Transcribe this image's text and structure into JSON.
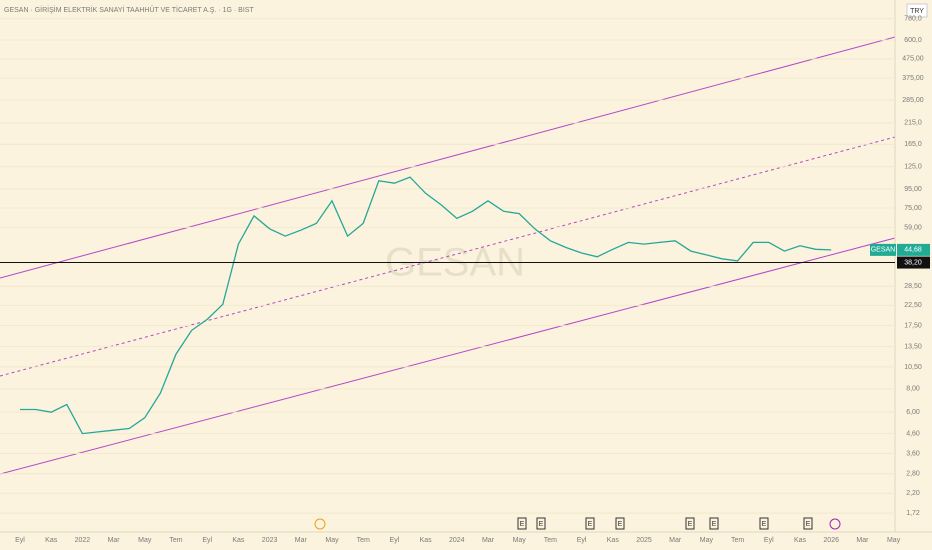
{
  "chart_data": {
    "type": "line",
    "title": "GESAN · GİRİŞİM ELEKTRİK SANAYİ TAAHHÜT VE TİCARET A.Ş. · 1G · BIST",
    "currency": "TRY",
    "watermark": "GESAN",
    "symbol": "GESAN",
    "log_scale": true,
    "grid": true,
    "color": "#26a69a",
    "categories": [
      "Eyl",
      null,
      "Kas",
      null,
      "2022",
      null,
      "Mar",
      null,
      "May",
      null,
      "Tem",
      null,
      "Eyl",
      null,
      "Kas",
      null,
      "2023",
      null,
      "Mar",
      null,
      "May",
      null,
      "Tem",
      null,
      "Eyl",
      null,
      "Kas",
      null,
      "2024",
      null,
      "Mar",
      null,
      "May",
      null,
      "Tem",
      null,
      "Eyl",
      null,
      "Kas",
      null,
      "2025",
      null,
      "Mar",
      null,
      "May",
      null,
      "Tem",
      null,
      "Eyl",
      null,
      "Kas",
      null,
      "2026",
      null,
      "Mar",
      null,
      "May"
    ],
    "values": [
      6.2,
      6.2,
      6.0,
      6.6,
      4.6,
      4.7,
      4.8,
      4.9,
      5.6,
      7.6,
      12.3,
      16.5,
      18.9,
      22.8,
      48,
      68,
      58,
      53,
      57,
      62,
      82,
      53,
      62,
      105,
      102,
      110,
      90,
      78,
      66,
      72,
      82,
      72,
      70,
      58,
      50,
      46,
      43,
      41,
      45,
      49,
      48,
      49,
      50,
      44,
      42,
      40,
      39,
      49,
      49,
      44,
      47,
      45,
      44.68,
      null,
      null,
      null,
      null
    ],
    "ylim": [
      1.58,
      891
    ],
    "yticks": [
      {
        "value": 1.72,
        "label": "1,72"
      },
      {
        "value": 2.2,
        "label": "2,20"
      },
      {
        "value": 2.8,
        "label": "2,80"
      },
      {
        "value": 3.6,
        "label": "3,60"
      },
      {
        "value": 4.6,
        "label": "4,60"
      },
      {
        "value": 6,
        "label": "6,00"
      },
      {
        "value": 8,
        "label": "8,00"
      },
      {
        "value": 10.5,
        "label": "10,50"
      },
      {
        "value": 13.5,
        "label": "13,50"
      },
      {
        "value": 17.5,
        "label": "17,50"
      },
      {
        "value": 22.5,
        "label": "22,50"
      },
      {
        "value": 28.5,
        "label": "28,50"
      },
      {
        "value": 59,
        "label": "59,00"
      },
      {
        "value": 75,
        "label": "75,00"
      },
      {
        "value": 95,
        "label": "95,00"
      },
      {
        "value": 125,
        "label": "125,0"
      },
      {
        "value": 165,
        "label": "165,0"
      },
      {
        "value": 215,
        "label": "215,0"
      },
      {
        "value": 285,
        "label": "285,00"
      },
      {
        "value": 375,
        "label": "375,00"
      },
      {
        "value": 475,
        "label": "475,00"
      },
      {
        "value": 600,
        "label": "600,0"
      },
      {
        "value": 780,
        "label": "780,0"
      }
    ],
    "price_line": {
      "value": 38.2,
      "label": "38,20"
    },
    "last_price": {
      "value": 44.68,
      "label": "44,68"
    },
    "event_markers": [
      "E",
      "E",
      "E",
      "E",
      "E",
      "E",
      "E",
      "E"
    ]
  }
}
